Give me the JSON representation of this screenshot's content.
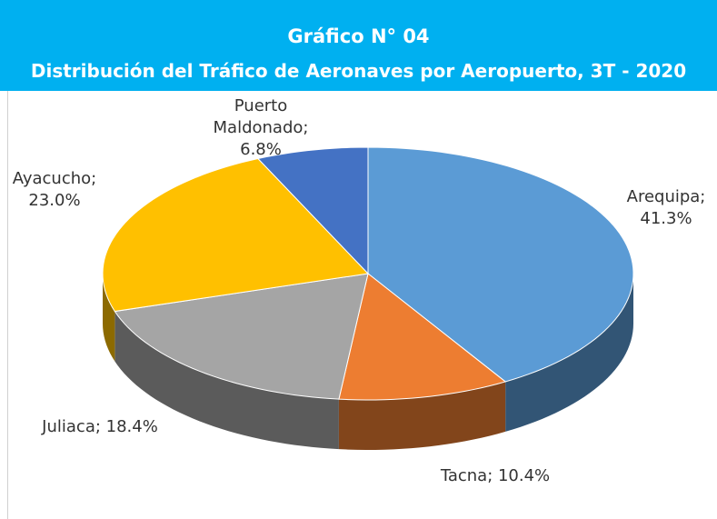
{
  "chart_data": {
    "type": "pie3d",
    "title": "Gráfico N° 04",
    "subtitle": "Distribución del Tráfico de Aeronaves por Aeropuerto, 3T - 2020",
    "values": [
      41.3,
      10.4,
      18.4,
      23.0,
      6.8
    ],
    "value_labels": [
      "Arequipa; 41.3%",
      "Tacna; 10.4%",
      "Juliaca; 18.4%",
      "Ayacucho; 23.0%",
      "Puerto Maldonado; 6.8%"
    ],
    "colors": [
      "#5b9bd5",
      "#ed7d31",
      "#a5a5a5",
      "#ffc000",
      "#4472c4"
    ]
  }
}
